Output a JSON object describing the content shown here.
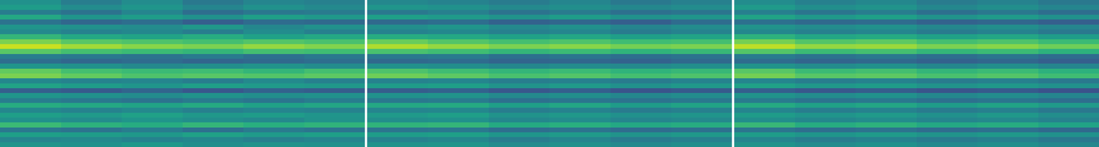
{
  "chart_data": {
    "type": "heatmap",
    "color": "Viridis",
    "tick_labels": false,
    "zlim": [
      0,
      1
    ],
    "panels": [
      {
        "z": [
          [
            0.5,
            0.42,
            0.48,
            0.4,
            0.45,
            0.43
          ],
          [
            0.55,
            0.48,
            0.52,
            0.45,
            0.5,
            0.47
          ],
          [
            0.42,
            0.38,
            0.45,
            0.36,
            0.4,
            0.41
          ],
          [
            0.6,
            0.52,
            0.55,
            0.5,
            0.56,
            0.53
          ],
          [
            0.38,
            0.33,
            0.36,
            0.3,
            0.35,
            0.34
          ],
          [
            0.52,
            0.5,
            0.48,
            0.53,
            0.46,
            0.5
          ],
          [
            0.47,
            0.44,
            0.46,
            0.42,
            0.48,
            0.43
          ],
          [
            0.66,
            0.6,
            0.58,
            0.62,
            0.57,
            0.6
          ],
          [
            0.8,
            0.74,
            0.72,
            0.7,
            0.73,
            0.71
          ],
          [
            0.92,
            0.86,
            0.82,
            0.8,
            0.84,
            0.81
          ],
          [
            0.74,
            0.7,
            0.68,
            0.66,
            0.7,
            0.69
          ],
          [
            0.42,
            0.4,
            0.38,
            0.41,
            0.37,
            0.4
          ],
          [
            0.36,
            0.33,
            0.35,
            0.32,
            0.34,
            0.36
          ],
          [
            0.52,
            0.5,
            0.47,
            0.49,
            0.51,
            0.48
          ],
          [
            0.76,
            0.7,
            0.68,
            0.69,
            0.66,
            0.7
          ],
          [
            0.8,
            0.76,
            0.72,
            0.74,
            0.73,
            0.75
          ],
          [
            0.46,
            0.44,
            0.45,
            0.42,
            0.47,
            0.43
          ],
          [
            0.58,
            0.55,
            0.52,
            0.56,
            0.54,
            0.53
          ],
          [
            0.3,
            0.28,
            0.32,
            0.27,
            0.31,
            0.29
          ],
          [
            0.52,
            0.5,
            0.48,
            0.51,
            0.49,
            0.5
          ],
          [
            0.42,
            0.4,
            0.38,
            0.41,
            0.39,
            0.42
          ],
          [
            0.62,
            0.6,
            0.58,
            0.61,
            0.57,
            0.59
          ],
          [
            0.46,
            0.44,
            0.47,
            0.43,
            0.45,
            0.44
          ],
          [
            0.56,
            0.54,
            0.57,
            0.53,
            0.55,
            0.52
          ],
          [
            0.5,
            0.48,
            0.52,
            0.49,
            0.47,
            0.51
          ],
          [
            0.68,
            0.64,
            0.62,
            0.66,
            0.63,
            0.65
          ],
          [
            0.4,
            0.38,
            0.42,
            0.37,
            0.41,
            0.39
          ],
          [
            0.56,
            0.55,
            0.53,
            0.57,
            0.54,
            0.56
          ],
          [
            0.45,
            0.47,
            0.44,
            0.46,
            0.43,
            0.45
          ],
          [
            0.52,
            0.5,
            0.53,
            0.49,
            0.51,
            0.5
          ]
        ]
      },
      {
        "z": [
          [
            0.46,
            0.44,
            0.41,
            0.45,
            0.4,
            0.43
          ],
          [
            0.52,
            0.5,
            0.47,
            0.49,
            0.46,
            0.48
          ],
          [
            0.4,
            0.43,
            0.38,
            0.41,
            0.37,
            0.39
          ],
          [
            0.56,
            0.54,
            0.51,
            0.55,
            0.5,
            0.52
          ],
          [
            0.34,
            0.36,
            0.31,
            0.33,
            0.3,
            0.35
          ],
          [
            0.49,
            0.52,
            0.47,
            0.5,
            0.45,
            0.48
          ],
          [
            0.44,
            0.46,
            0.43,
            0.45,
            0.41,
            0.44
          ],
          [
            0.62,
            0.6,
            0.57,
            0.59,
            0.56,
            0.58
          ],
          [
            0.77,
            0.73,
            0.7,
            0.72,
            0.69,
            0.7
          ],
          [
            0.88,
            0.84,
            0.8,
            0.82,
            0.79,
            0.8
          ],
          [
            0.71,
            0.69,
            0.66,
            0.68,
            0.65,
            0.67
          ],
          [
            0.4,
            0.41,
            0.37,
            0.39,
            0.36,
            0.38
          ],
          [
            0.34,
            0.35,
            0.32,
            0.33,
            0.31,
            0.34
          ],
          [
            0.5,
            0.49,
            0.46,
            0.48,
            0.47,
            0.49
          ],
          [
            0.72,
            0.69,
            0.66,
            0.68,
            0.65,
            0.67
          ],
          [
            0.78,
            0.75,
            0.71,
            0.73,
            0.7,
            0.72
          ],
          [
            0.44,
            0.45,
            0.42,
            0.43,
            0.41,
            0.44
          ],
          [
            0.55,
            0.56,
            0.51,
            0.54,
            0.5,
            0.53
          ],
          [
            0.29,
            0.31,
            0.27,
            0.3,
            0.26,
            0.28
          ],
          [
            0.5,
            0.51,
            0.47,
            0.49,
            0.46,
            0.48
          ],
          [
            0.4,
            0.41,
            0.37,
            0.39,
            0.38,
            0.4
          ],
          [
            0.6,
            0.61,
            0.56,
            0.59,
            0.55,
            0.58
          ],
          [
            0.45,
            0.46,
            0.42,
            0.44,
            0.41,
            0.43
          ],
          [
            0.54,
            0.56,
            0.51,
            0.53,
            0.5,
            0.52
          ],
          [
            0.49,
            0.5,
            0.46,
            0.48,
            0.45,
            0.47
          ],
          [
            0.65,
            0.66,
            0.61,
            0.63,
            0.6,
            0.62
          ],
          [
            0.39,
            0.4,
            0.36,
            0.38,
            0.35,
            0.37
          ],
          [
            0.55,
            0.56,
            0.52,
            0.54,
            0.51,
            0.53
          ],
          [
            0.44,
            0.46,
            0.42,
            0.45,
            0.41,
            0.43
          ],
          [
            0.51,
            0.52,
            0.48,
            0.5,
            0.47,
            0.49
          ]
        ]
      },
      {
        "z": [
          [
            0.48,
            0.43,
            0.46,
            0.41,
            0.44,
            0.4
          ],
          [
            0.54,
            0.49,
            0.51,
            0.46,
            0.49,
            0.45
          ],
          [
            0.43,
            0.39,
            0.42,
            0.37,
            0.4,
            0.36
          ],
          [
            0.58,
            0.53,
            0.56,
            0.51,
            0.54,
            0.5
          ],
          [
            0.37,
            0.34,
            0.35,
            0.31,
            0.33,
            0.3
          ],
          [
            0.51,
            0.48,
            0.5,
            0.46,
            0.49,
            0.45
          ],
          [
            0.46,
            0.43,
            0.45,
            0.41,
            0.44,
            0.4
          ],
          [
            0.64,
            0.59,
            0.61,
            0.57,
            0.59,
            0.55
          ],
          [
            0.79,
            0.73,
            0.75,
            0.7,
            0.72,
            0.68
          ],
          [
            0.9,
            0.84,
            0.85,
            0.8,
            0.82,
            0.78
          ],
          [
            0.73,
            0.68,
            0.7,
            0.66,
            0.68,
            0.64
          ],
          [
            0.41,
            0.38,
            0.4,
            0.36,
            0.39,
            0.35
          ],
          [
            0.35,
            0.32,
            0.34,
            0.31,
            0.33,
            0.3
          ],
          [
            0.51,
            0.48,
            0.5,
            0.46,
            0.49,
            0.45
          ],
          [
            0.74,
            0.68,
            0.7,
            0.66,
            0.68,
            0.64
          ],
          [
            0.79,
            0.74,
            0.75,
            0.71,
            0.73,
            0.69
          ],
          [
            0.45,
            0.42,
            0.44,
            0.41,
            0.43,
            0.4
          ],
          [
            0.57,
            0.53,
            0.55,
            0.51,
            0.53,
            0.5
          ],
          [
            0.3,
            0.27,
            0.29,
            0.26,
            0.28,
            0.25
          ],
          [
            0.51,
            0.48,
            0.5,
            0.46,
            0.48,
            0.45
          ],
          [
            0.41,
            0.38,
            0.4,
            0.37,
            0.39,
            0.36
          ],
          [
            0.61,
            0.57,
            0.59,
            0.55,
            0.58,
            0.54
          ],
          [
            0.45,
            0.42,
            0.44,
            0.41,
            0.43,
            0.4
          ],
          [
            0.55,
            0.52,
            0.54,
            0.5,
            0.53,
            0.49
          ],
          [
            0.49,
            0.46,
            0.48,
            0.45,
            0.47,
            0.44
          ],
          [
            0.67,
            0.62,
            0.64,
            0.6,
            0.62,
            0.58
          ],
          [
            0.39,
            0.36,
            0.38,
            0.35,
            0.37,
            0.34
          ],
          [
            0.55,
            0.52,
            0.54,
            0.51,
            0.53,
            0.5
          ],
          [
            0.45,
            0.42,
            0.44,
            0.41,
            0.43,
            0.4
          ],
          [
            0.51,
            0.48,
            0.5,
            0.47,
            0.49,
            0.46
          ]
        ]
      }
    ]
  }
}
